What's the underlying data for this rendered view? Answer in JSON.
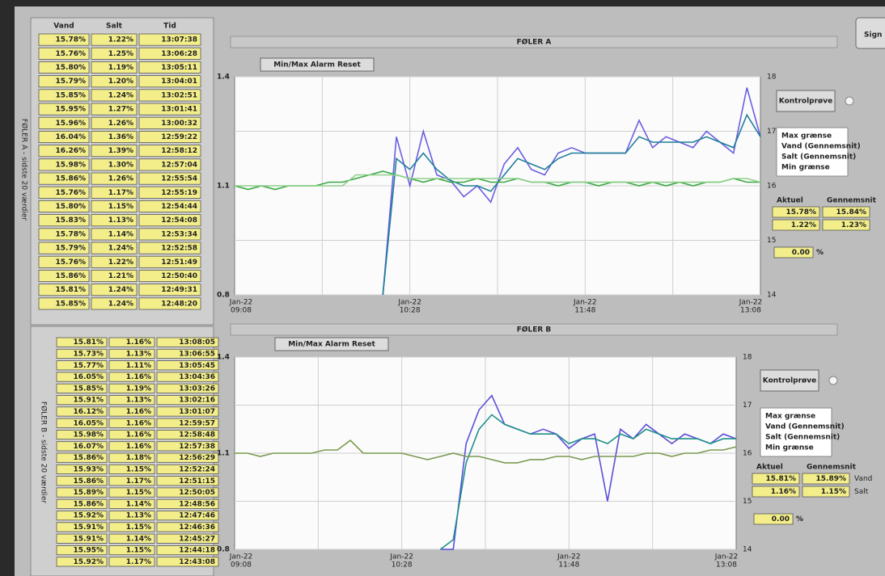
{
  "sign_button": "Sign",
  "table_headers": [
    "Vand",
    "Salt",
    "Tid"
  ],
  "panels": [
    {
      "side_label": "FØLER A - sidste 20 værdier",
      "rows": [
        [
          "15.78%",
          "1.22%",
          "13:07:38"
        ],
        [
          "15.76%",
          "1.25%",
          "13:06:28"
        ],
        [
          "15.80%",
          "1.19%",
          "13:05:11"
        ],
        [
          "15.79%",
          "1.20%",
          "13:04:01"
        ],
        [
          "15.85%",
          "1.24%",
          "13:02:51"
        ],
        [
          "15.95%",
          "1.27%",
          "13:01:41"
        ],
        [
          "15.96%",
          "1.26%",
          "13:00:32"
        ],
        [
          "16.04%",
          "1.36%",
          "12:59:22"
        ],
        [
          "16.26%",
          "1.39%",
          "12:58:12"
        ],
        [
          "15.98%",
          "1.30%",
          "12:57:04"
        ],
        [
          "15.86%",
          "1.26%",
          "12:55:54"
        ],
        [
          "15.76%",
          "1.17%",
          "12:55:19"
        ],
        [
          "15.80%",
          "1.15%",
          "12:54:44"
        ],
        [
          "15.83%",
          "1.13%",
          "12:54:08"
        ],
        [
          "15.78%",
          "1.14%",
          "12:53:34"
        ],
        [
          "15.79%",
          "1.24%",
          "12:52:58"
        ],
        [
          "15.76%",
          "1.22%",
          "12:51:49"
        ],
        [
          "15.86%",
          "1.21%",
          "12:50:40"
        ],
        [
          "15.81%",
          "1.24%",
          "12:49:31"
        ],
        [
          "15.85%",
          "1.24%",
          "12:48:20"
        ]
      ],
      "title": "FØLER A",
      "reset_button": "Min/Max Alarm Reset",
      "control_button": "Kontrolprøve",
      "chart": {
        "ylim": [
          0.8,
          1.4
        ],
        "yticks": [
          0.8,
          1.1,
          1.4
        ],
        "y2lim": [
          14,
          18
        ],
        "y2ticks": [
          14,
          15,
          16,
          17,
          18
        ],
        "xticks": [
          {
            "date": "Jan-22",
            "time": "09:08"
          },
          {
            "date": "Jan-22",
            "time": "10:28"
          },
          {
            "date": "Jan-22",
            "time": "11:48"
          },
          {
            "date": "Jan-22",
            "time": "13:08"
          }
        ],
        "series": [
          {
            "color": "#6a5fe0",
            "axis": "y2",
            "values": [
              null,
              null,
              null,
              null,
              null,
              null,
              null,
              null,
              null,
              null,
              null,
              14.0,
              16.9,
              16.0,
              17.0,
              16.2,
              16.1,
              15.8,
              16.0,
              15.7,
              16.4,
              16.7,
              16.3,
              16.2,
              16.6,
              16.7,
              16.6,
              16.6,
              16.6,
              16.6,
              17.2,
              16.7,
              16.9,
              16.8,
              16.7,
              17.0,
              16.8,
              16.6,
              17.8,
              16.9
            ]
          },
          {
            "color": "#1f7f9a",
            "axis": "y2",
            "values": [
              null,
              null,
              null,
              null,
              null,
              null,
              null,
              null,
              null,
              null,
              null,
              14.0,
              16.5,
              16.3,
              16.6,
              16.3,
              16.1,
              16.0,
              16.0,
              15.9,
              16.2,
              16.5,
              16.4,
              16.3,
              16.5,
              16.6,
              16.6,
              16.6,
              16.6,
              16.6,
              16.9,
              16.8,
              16.8,
              16.8,
              16.8,
              16.9,
              16.8,
              16.7,
              17.3,
              16.9
            ]
          },
          {
            "color": "#3aa844",
            "values": [
              1.1,
              1.09,
              1.1,
              1.09,
              1.1,
              1.1,
              1.1,
              1.11,
              1.11,
              1.12,
              1.13,
              1.14,
              1.13,
              1.12,
              1.11,
              1.12,
              1.11,
              1.11,
              1.12,
              1.11,
              1.11,
              1.12,
              1.11,
              1.11,
              1.1,
              1.11,
              1.11,
              1.1,
              1.11,
              1.11,
              1.1,
              1.11,
              1.1,
              1.11,
              1.1,
              1.11,
              1.11,
              1.12,
              1.11,
              1.11
            ]
          },
          {
            "color": "#8fd08a",
            "values": [
              1.1,
              1.1,
              1.1,
              1.1,
              1.1,
              1.1,
              1.1,
              1.1,
              1.1,
              1.13,
              1.13,
              1.13,
              1.13,
              1.12,
              1.12,
              1.12,
              1.12,
              1.12,
              1.12,
              1.12,
              1.12,
              1.12,
              1.11,
              1.11,
              1.11,
              1.11,
              1.11,
              1.11,
              1.11,
              1.11,
              1.11,
              1.11,
              1.11,
              1.11,
              1.11,
              1.11,
              1.11,
              1.12,
              1.12,
              1.11
            ]
          }
        ]
      },
      "legend": [
        {
          "label": "Max grænse",
          "color": "#c030c0"
        },
        {
          "label": "Vand (Gennemsnit)",
          "color": "#2a8a2a"
        },
        {
          "label": "Salt (Gennemsnit)",
          "color": "#2a8a2a"
        },
        {
          "label": "Min grænse",
          "color": "#e080e0"
        }
      ],
      "status": {
        "headers": [
          "Aktuel",
          "Gennemsnit"
        ],
        "rows": [
          [
            "15.78%",
            "15.84%"
          ],
          [
            "1.22%",
            "1.23%"
          ]
        ]
      },
      "offset": "0.00",
      "offset_unit": "%"
    },
    {
      "side_label": "FØLER B - sidste 20 værdier",
      "rows": [
        [
          "15.81%",
          "1.16%",
          "13:08:05"
        ],
        [
          "15.73%",
          "1.13%",
          "13:06:55"
        ],
        [
          "15.77%",
          "1.11%",
          "13:05:45"
        ],
        [
          "16.05%",
          "1.16%",
          "13:04:36"
        ],
        [
          "15.85%",
          "1.19%",
          "13:03:26"
        ],
        [
          "15.91%",
          "1.13%",
          "13:02:16"
        ],
        [
          "16.12%",
          "1.16%",
          "13:01:07"
        ],
        [
          "16.05%",
          "1.16%",
          "12:59:57"
        ],
        [
          "15.98%",
          "1.16%",
          "12:58:48"
        ],
        [
          "16.07%",
          "1.16%",
          "12:57:38"
        ],
        [
          "15.86%",
          "1.18%",
          "12:56:29"
        ],
        [
          "15.93%",
          "1.15%",
          "12:52:24"
        ],
        [
          "15.86%",
          "1.17%",
          "12:51:15"
        ],
        [
          "15.89%",
          "1.15%",
          "12:50:05"
        ],
        [
          "15.86%",
          "1.14%",
          "12:48:56"
        ],
        [
          "15.92%",
          "1.13%",
          "12:47:46"
        ],
        [
          "15.91%",
          "1.15%",
          "12:46:36"
        ],
        [
          "15.91%",
          "1.14%",
          "12:45:27"
        ],
        [
          "15.95%",
          "1.15%",
          "12:44:18"
        ],
        [
          "15.92%",
          "1.17%",
          "12:43:08"
        ]
      ],
      "title": "FØLER B",
      "reset_button": "Min/Max Alarm Reset",
      "control_button": "Kontrolprøve",
      "chart": {
        "ylim": [
          0.8,
          1.4
        ],
        "yticks": [
          0.8,
          1.1,
          1.4
        ],
        "y2lim": [
          14,
          18
        ],
        "y2ticks": [
          14,
          15,
          16,
          17,
          18
        ],
        "xticks": [
          {
            "date": "Jan-22",
            "time": "09:08"
          },
          {
            "date": "Jan-22",
            "time": "10:28"
          },
          {
            "date": "Jan-22",
            "time": "11:48"
          },
          {
            "date": "Jan-22",
            "time": "13:08"
          }
        ],
        "series": [
          {
            "color": "#5a50d8",
            "axis": "y2",
            "values": [
              null,
              null,
              null,
              null,
              null,
              null,
              null,
              null,
              null,
              null,
              null,
              null,
              null,
              null,
              null,
              null,
              14.0,
              14.0,
              16.2,
              16.9,
              17.2,
              16.6,
              16.5,
              16.4,
              16.5,
              16.4,
              16.1,
              16.3,
              16.4,
              15.0,
              16.5,
              16.3,
              16.6,
              16.4,
              16.2,
              16.4,
              16.3,
              16.2,
              16.4,
              16.3
            ]
          },
          {
            "color": "#1f8f8a",
            "axis": "y2",
            "values": [
              null,
              null,
              null,
              null,
              null,
              null,
              null,
              null,
              null,
              null,
              null,
              null,
              null,
              null,
              null,
              null,
              14.0,
              14.2,
              15.8,
              16.5,
              16.8,
              16.6,
              16.5,
              16.4,
              16.4,
              16.4,
              16.2,
              16.3,
              16.3,
              16.2,
              16.4,
              16.3,
              16.5,
              16.4,
              16.3,
              16.3,
              16.3,
              16.2,
              16.3,
              16.3
            ]
          },
          {
            "color": "#7a9a50",
            "values": [
              1.1,
              1.1,
              1.09,
              1.1,
              1.1,
              1.1,
              1.1,
              1.11,
              1.11,
              1.14,
              1.1,
              1.1,
              1.1,
              1.1,
              1.09,
              1.08,
              1.09,
              1.1,
              1.09,
              1.09,
              1.08,
              1.07,
              1.07,
              1.08,
              1.08,
              1.09,
              1.09,
              1.08,
              1.09,
              1.09,
              1.09,
              1.09,
              1.1,
              1.1,
              1.09,
              1.1,
              1.1,
              1.11,
              1.11,
              1.12
            ]
          }
        ]
      },
      "legend": [
        {
          "label": "Max grænse",
          "color": "#c030c0"
        },
        {
          "label": "Vand (Gennemsnit)",
          "color": "#2a8a2a"
        },
        {
          "label": "Salt (Gennemsnit)",
          "color": "#2a8a2a"
        },
        {
          "label": "Min grænse",
          "color": "#e080e0"
        }
      ],
      "status": {
        "headers": [
          "Aktuel",
          "Gennemsnit"
        ],
        "rows": [
          [
            "15.81%",
            "15.89%"
          ],
          [
            "1.16%",
            "1.15%"
          ]
        ],
        "row_labels": [
          "Vand",
          "Salt"
        ]
      },
      "offset": "0.00",
      "offset_unit": "%"
    }
  ]
}
